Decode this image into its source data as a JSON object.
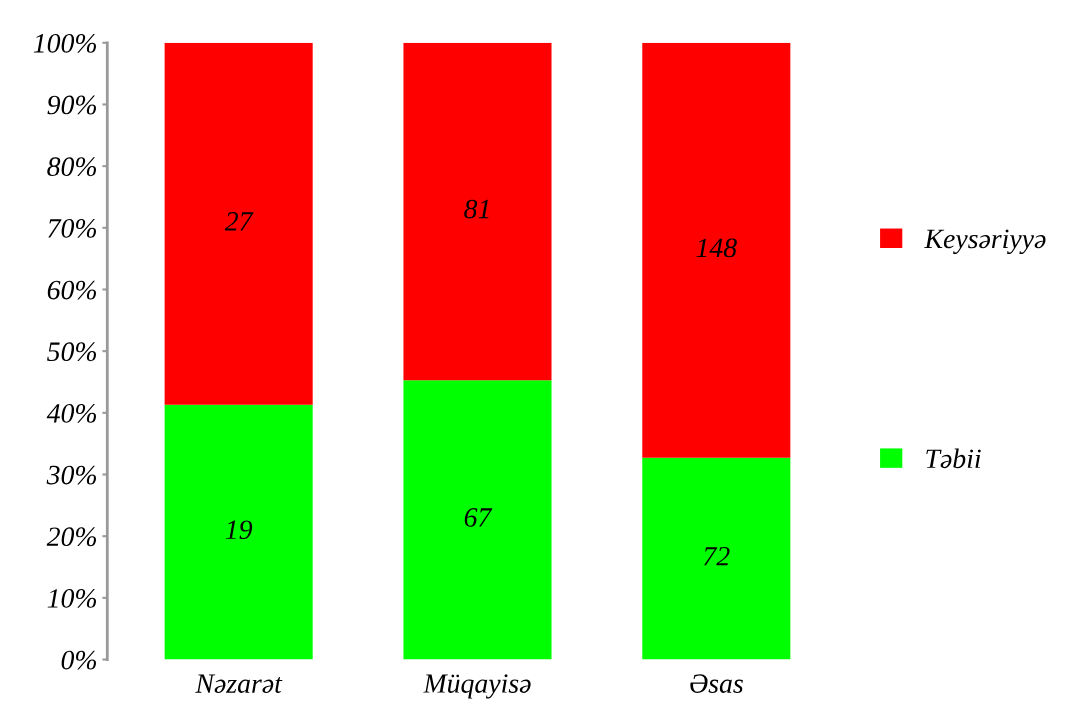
{
  "chart_data": {
    "type": "bar",
    "stacked": true,
    "categories": [
      "Nəzarət",
      "Müqayisə",
      "Əsas"
    ],
    "series": [
      {
        "name": "Təbii",
        "color": "#00ff00",
        "values": [
          41.3,
          45.3,
          32.7
        ]
      },
      {
        "name": "Keysəriyyə",
        "color": "#ff0000",
        "values": [
          58.7,
          54.7,
          67.3
        ]
      }
    ],
    "annotations": [
      "19",
      "67",
      "72",
      "27",
      "81",
      "148"
    ],
    "ylim": [
      0,
      100
    ],
    "yticks": [
      {
        "value": 0,
        "label": "0%"
      },
      {
        "value": 10,
        "label": "10%"
      },
      {
        "value": 20,
        "label": "20%"
      },
      {
        "value": 30,
        "label": "30%"
      },
      {
        "value": 40,
        "label": "40%"
      },
      {
        "value": 50,
        "label": "50%"
      },
      {
        "value": 60,
        "label": "60%"
      },
      {
        "value": 70,
        "label": "70%"
      },
      {
        "value": 80,
        "label": "80%"
      },
      {
        "value": 90,
        "label": "90%"
      },
      {
        "value": 100,
        "label": "100%"
      }
    ],
    "grid": false,
    "legend": "right"
  }
}
